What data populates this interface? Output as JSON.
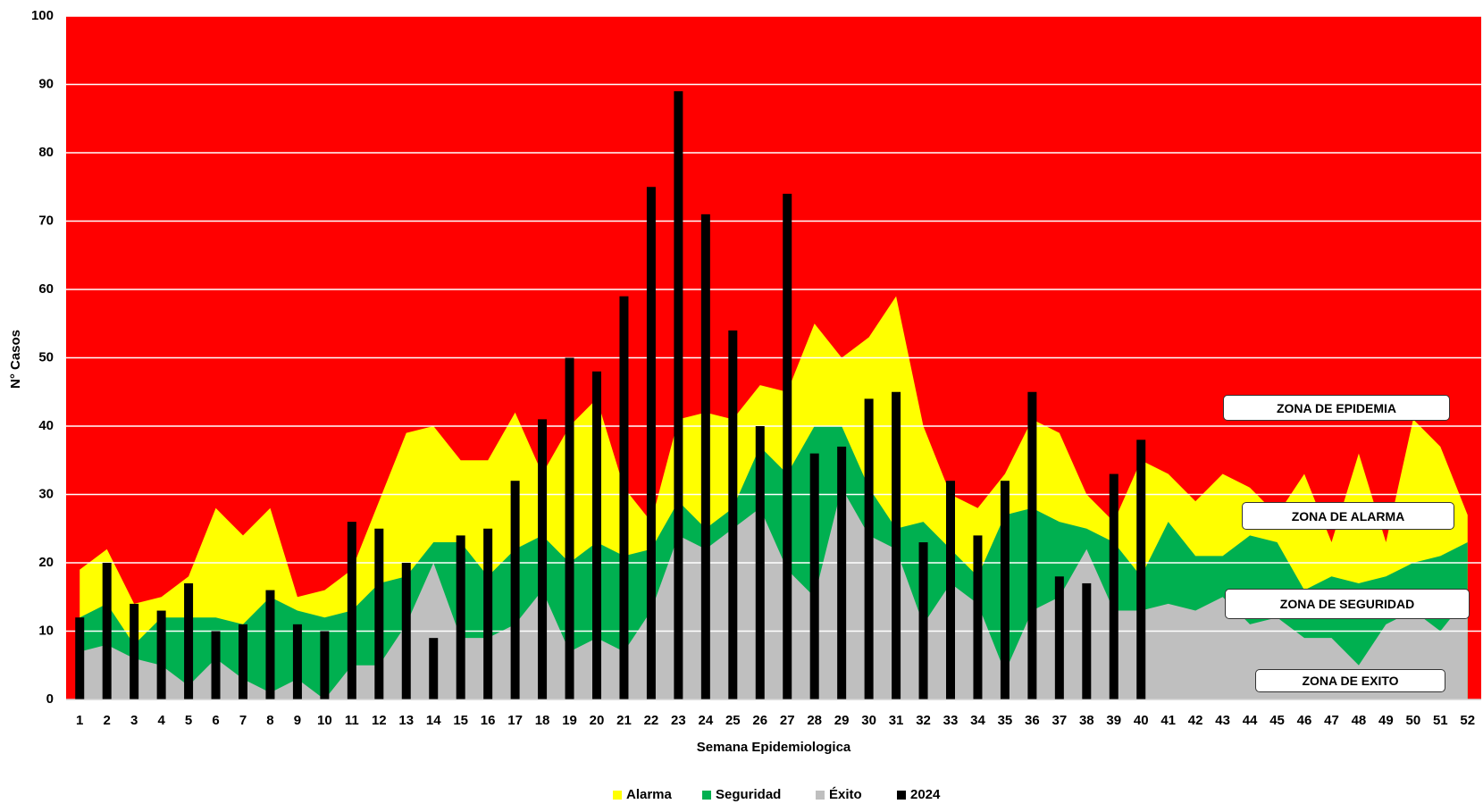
{
  "chart_data": {
    "type": "area",
    "y_label": "N° Casos",
    "x_label": "Semana Epidemiologica",
    "categories": [
      "1",
      "2",
      "3",
      "4",
      "5",
      "6",
      "7",
      "8",
      "9",
      "10",
      "11",
      "12",
      "13",
      "14",
      "15",
      "16",
      "17",
      "18",
      "19",
      "20",
      "21",
      "22",
      "23",
      "24",
      "25",
      "26",
      "27",
      "28",
      "29",
      "30",
      "31",
      "32",
      "33",
      "34",
      "35",
      "36",
      "37",
      "38",
      "39",
      "40",
      "41",
      "42",
      "43",
      "44",
      "45",
      "46",
      "47",
      "48",
      "49",
      "50",
      "51",
      "52"
    ],
    "ylim": [
      0,
      100
    ],
    "yticks": [
      0,
      10,
      20,
      30,
      40,
      50,
      60,
      70,
      80,
      90,
      100
    ],
    "grid": true,
    "background_color": "#ff0000",
    "legend": "bottom",
    "annotations": [
      "ZONA DE EPIDEMIA",
      "ZONA DE ALARMA",
      "ZONA DE SEGURIDAD",
      "ZONA DE EXITO"
    ],
    "series": [
      {
        "name": "Alarma",
        "type": "area",
        "color": "#ffff00",
        "values": [
          19,
          22,
          14,
          15,
          18,
          28,
          24,
          28,
          15,
          16,
          19,
          29,
          39,
          40,
          35,
          35,
          42,
          33,
          40,
          44,
          31,
          26,
          41,
          42,
          41,
          46,
          45,
          55,
          50,
          53,
          59,
          40,
          30,
          28,
          33,
          41,
          39,
          30,
          26,
          35,
          33,
          29,
          33,
          31,
          27,
          33,
          23,
          36,
          23,
          41,
          37,
          27
        ]
      },
      {
        "name": "Seguridad",
        "type": "area",
        "color": "#00b050",
        "values": [
          12,
          14,
          8,
          12,
          12,
          12,
          11,
          15,
          13,
          12,
          13,
          17,
          18,
          23,
          23,
          18,
          22,
          24,
          20,
          23,
          21,
          22,
          29,
          25,
          28,
          37,
          33,
          40,
          40,
          31,
          25,
          26,
          22,
          18,
          27,
          28,
          26,
          25,
          23,
          18,
          26,
          21,
          21,
          24,
          23,
          16,
          18,
          17,
          18,
          20,
          21,
          23
        ]
      },
      {
        "name": "Éxito",
        "type": "area",
        "color": "#bfbfbf",
        "values": [
          7,
          8,
          6,
          5,
          2,
          6,
          3,
          1,
          3,
          0,
          5,
          5,
          11,
          20,
          9,
          9,
          11,
          16,
          7,
          9,
          7,
          13,
          24,
          22,
          25,
          28,
          19,
          15,
          31,
          24,
          22,
          11,
          17,
          14,
          4,
          13,
          15,
          22,
          13,
          13,
          14,
          13,
          15,
          11,
          12,
          9,
          9,
          5,
          11,
          13,
          10,
          15
        ]
      },
      {
        "name": "2024",
        "type": "bar",
        "color": "#000000",
        "values": [
          12,
          20,
          14,
          13,
          17,
          10,
          11,
          16,
          11,
          10,
          26,
          25,
          20,
          9,
          24,
          25,
          32,
          41,
          50,
          48,
          59,
          75,
          89,
          71,
          54,
          40,
          74,
          36,
          37,
          44,
          45,
          23,
          32,
          24,
          32,
          45,
          18,
          17,
          33,
          38,
          null,
          null,
          null,
          null,
          null,
          null,
          null,
          null,
          null,
          null,
          null,
          null
        ]
      }
    ]
  }
}
